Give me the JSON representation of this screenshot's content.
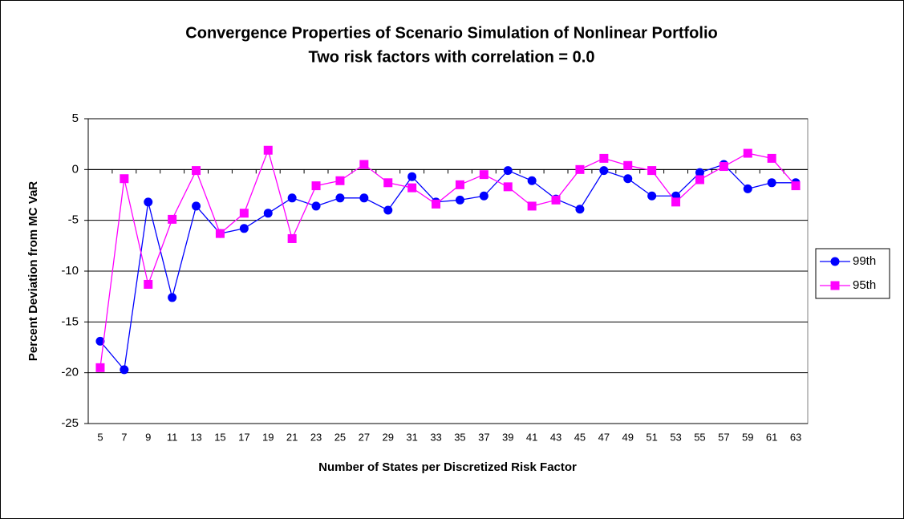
{
  "chart_data": {
    "type": "line",
    "title": "Convergence Properties of Scenario Simulation of Nonlinear Portfolio",
    "subtitle": "Two risk factors with correlation = 0.0",
    "x_label": "Number of States per Discretized Risk Factor",
    "y_label": "Percent Deviation from MC VaR",
    "categories": [
      "5",
      "7",
      "9",
      "11",
      "13",
      "15",
      "17",
      "19",
      "21",
      "23",
      "25",
      "27",
      "29",
      "31",
      "33",
      "35",
      "37",
      "39",
      "41",
      "43",
      "45",
      "47",
      "49",
      "51",
      "53",
      "55",
      "57",
      "59",
      "61",
      "63"
    ],
    "series": [
      {
        "name": "99th",
        "color": "#0000ff",
        "marker": "circle",
        "values": [
          -16.9,
          -19.7,
          -3.2,
          -12.6,
          -3.6,
          -6.3,
          -5.8,
          -4.3,
          -2.8,
          -3.6,
          -2.8,
          -2.8,
          -4.0,
          -0.7,
          -3.2,
          -3.0,
          -2.6,
          -0.1,
          -1.1,
          -2.9,
          -3.9,
          -0.1,
          -0.9,
          -2.6,
          -2.6,
          -0.3,
          0.5,
          -1.9,
          -1.3,
          -1.3
        ]
      },
      {
        "name": "95th",
        "color": "#ff00ff",
        "marker": "square",
        "values": [
          -19.5,
          -0.9,
          -11.3,
          -4.9,
          -0.1,
          -6.3,
          -4.3,
          1.9,
          -6.8,
          -1.6,
          -1.1,
          0.5,
          -1.3,
          -1.8,
          -3.4,
          -1.5,
          -0.5,
          -1.7,
          -3.6,
          -3.0,
          0.0,
          1.1,
          0.4,
          -0.1,
          -3.2,
          -1.0,
          0.3,
          1.6,
          1.1,
          -1.6
        ]
      }
    ],
    "ylim": [
      -25,
      5
    ],
    "yticks": [
      -25,
      -20,
      -15,
      -10,
      -5,
      0,
      5
    ],
    "grid": true,
    "legend": "right"
  }
}
